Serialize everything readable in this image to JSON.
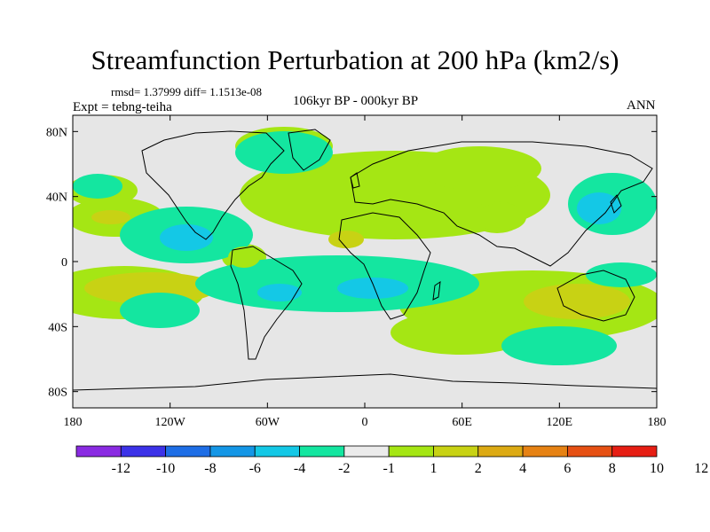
{
  "title": "Streamfunction Perturbation at 200 hPa (km2/s)",
  "stats": "rmsd= 1.37999 diff= 1.1513e-08",
  "expt": "Expt = tebng-teiha",
  "period": "106kyr BP - 000kyr BP",
  "season": "ANN",
  "lat_ticks": [
    {
      "label": "80N",
      "lat": 80
    },
    {
      "label": "40N",
      "lat": 40
    },
    {
      "label": "0",
      "lat": 0
    },
    {
      "label": "40S",
      "lat": -40
    },
    {
      "label": "80S",
      "lat": -80
    }
  ],
  "lon_ticks": [
    {
      "label": "180",
      "lon": -180
    },
    {
      "label": "120W",
      "lon": -120
    },
    {
      "label": "60W",
      "lon": -60
    },
    {
      "label": "0",
      "lon": 0
    },
    {
      "label": "60E",
      "lon": 60
    },
    {
      "label": "120E",
      "lon": 120
    },
    {
      "label": "180",
      "lon": 180
    }
  ],
  "colorbar": {
    "colors": [
      "#8a2be2",
      "#3c32e8",
      "#1e6ee6",
      "#1496e6",
      "#14c8e6",
      "#14e6a0",
      "#ebebeb",
      "#a5e614",
      "#c8d214",
      "#dcaa14",
      "#e68214",
      "#e65014",
      "#e61e14"
    ],
    "labels": [
      "-12",
      "-10",
      "-8",
      "-6",
      "-4",
      "-2",
      "-1",
      "1",
      "2",
      "4",
      "6",
      "8",
      "10",
      "12"
    ]
  },
  "colors": {
    "land_bg": "#e6e6e6",
    "c_m4": "#14c8e6",
    "c_m2": "#14e6a0",
    "c_p2": "#a5e614",
    "c_p4": "#c8d214"
  }
}
